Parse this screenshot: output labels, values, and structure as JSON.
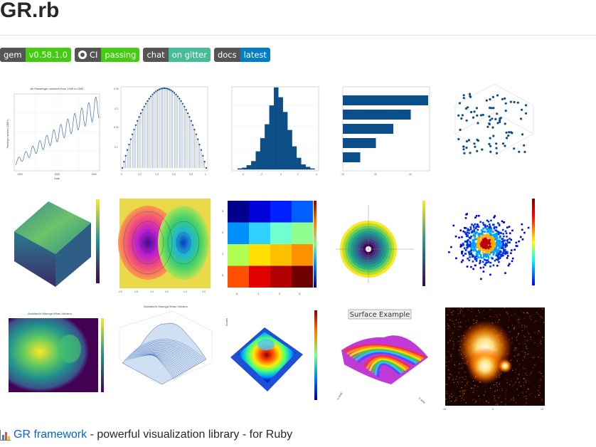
{
  "page": {
    "title": "GR.rb"
  },
  "badges": [
    {
      "left": "gem",
      "right": "v0.58.1.0",
      "color": "#4c1"
    },
    {
      "left": "CI",
      "right": "passing",
      "color": "#4c1",
      "icon": "github-icon"
    },
    {
      "left": "chat",
      "right": "on gitter",
      "color": "#46bc99"
    },
    {
      "left": "docs",
      "right": "latest",
      "color": "#007ec6"
    }
  ],
  "gallery": {
    "air_title": "Air Passenger numbers from 1949 to 1961",
    "air_ylabel": "Passenger numbers (1000's)",
    "air_xlabel": "Date",
    "volcano_title": "Auckland's Maunga Whau Volcano",
    "volcano_wire_title": "Auckland's Maunga Whau Volcano",
    "surface_title": "Surface Example",
    "surface_y_axis": "Y-Axis",
    "surface_x_axis": "X-Axis",
    "counts_label": "Counts",
    "icons": [
      "line-chart",
      "stem-plot",
      "histogram",
      "horizontal-bar",
      "scatter-3d",
      "volume-3d",
      "contour",
      "heatmap",
      "polar-heatmap",
      "hexbin",
      "volcano-heatmap",
      "wireframe-3d",
      "surface-3d",
      "surface-example",
      "particle-image"
    ]
  },
  "footer": {
    "icon": "bar-chart-icon",
    "link": "GR framework",
    "text": " - powerful visualization library - for Ruby"
  }
}
